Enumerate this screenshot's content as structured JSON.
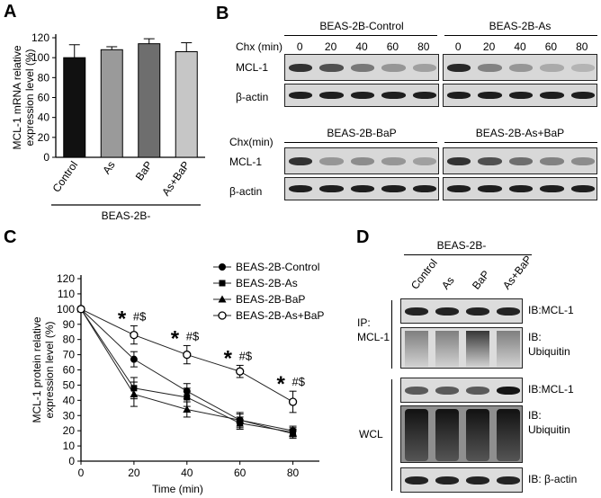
{
  "panels": {
    "a": "A",
    "b": "B",
    "c": "C",
    "d": "D"
  },
  "panel_a": {
    "chart_data": {
      "type": "bar",
      "categories": [
        "Control",
        "As",
        "BaP",
        "As+BaP"
      ],
      "values": [
        100,
        108,
        114,
        106
      ],
      "errors": [
        13,
        3,
        5,
        9
      ],
      "colors": [
        "#111111",
        "#9a9a9a",
        "#6e6e6e",
        "#c6c6c6"
      ],
      "ylabel": "MCL-1 mRNA relative expression level (%)",
      "ylabel_lines": [
        "MCL-1 mRNA relative",
        "expression level (%)"
      ],
      "ylim": [
        0,
        120
      ],
      "yticks": [
        "0",
        "20",
        "40",
        "60",
        "80",
        "100",
        "120"
      ],
      "group_label": "BEAS-2B-"
    }
  },
  "panel_b": {
    "chx_label": "Chx (min)",
    "chx_label_bottom": "Chx(min)",
    "timepoints": [
      "0",
      "20",
      "40",
      "60",
      "80"
    ],
    "row_labels": {
      "mcl1": "MCL-1",
      "actin": "β-actin"
    },
    "groups": [
      {
        "title": "BEAS-2B-Control",
        "mcl1_intensity": [
          0.85,
          0.7,
          0.5,
          0.35,
          0.3
        ]
      },
      {
        "title": "BEAS-2B-As",
        "mcl1_intensity": [
          0.9,
          0.45,
          0.35,
          0.25,
          0.2
        ]
      },
      {
        "title": "BEAS-2B-BaP",
        "mcl1_intensity": [
          0.85,
          0.35,
          0.4,
          0.35,
          0.3
        ]
      },
      {
        "title": "BEAS-2B-As+BaP",
        "mcl1_intensity": [
          0.85,
          0.7,
          0.55,
          0.45,
          0.4
        ]
      }
    ]
  },
  "panel_c": {
    "chart_data": {
      "type": "line",
      "x": [
        0,
        20,
        40,
        60,
        80
      ],
      "xticks": [
        "0",
        "20",
        "40",
        "60",
        "80"
      ],
      "yticks": [
        "0",
        "10",
        "20",
        "30",
        "40",
        "50",
        "60",
        "70",
        "80",
        "90",
        "100",
        "110",
        "120"
      ],
      "xlabel": "Time (min)",
      "ylabel": "MCL-1 protein relative expression level (%)",
      "ylabel_lines": [
        "MCL-1 protein relative",
        "expression level (%)"
      ],
      "xlim": [
        0,
        90
      ],
      "ylim": [
        0,
        120
      ],
      "series": [
        {
          "name": "BEAS-2B-Control",
          "marker": "circle-filled",
          "values": [
            100,
            67,
            46,
            27,
            20
          ],
          "errors": [
            0,
            5,
            5,
            4,
            3
          ]
        },
        {
          "name": "BEAS-2B-As",
          "marker": "square",
          "values": [
            100,
            48,
            42,
            25,
            19
          ],
          "errors": [
            0,
            7,
            6,
            4,
            3
          ]
        },
        {
          "name": "BEAS-2B-BaP",
          "marker": "triangle",
          "values": [
            100,
            44,
            34,
            27,
            18
          ],
          "errors": [
            0,
            8,
            5,
            5,
            3
          ]
        },
        {
          "name": "BEAS-2B-As+BaP",
          "marker": "circle-open",
          "values": [
            100,
            83,
            70,
            59,
            39
          ],
          "errors": [
            0,
            6,
            6,
            4,
            7
          ]
        }
      ],
      "annotations": [
        {
          "x": 20,
          "star": "*",
          "text": "#$"
        },
        {
          "x": 40,
          "star": "*",
          "text": "#$"
        },
        {
          "x": 60,
          "star": "*",
          "text": "#$"
        },
        {
          "x": 80,
          "star": "*",
          "text": "#$"
        }
      ],
      "legend_position": "top-right"
    }
  },
  "panel_d": {
    "group_label": "BEAS-2B-",
    "lanes": [
      "Control",
      "As",
      "BaP",
      "As+BaP"
    ],
    "ip_label": "IP:",
    "ip_target": "MCL-1",
    "wcl_label": "WCL",
    "blots": [
      {
        "label": "IB:MCL-1",
        "label2": "",
        "kind": "band"
      },
      {
        "label": "IB:",
        "label2": "Ubiquitin",
        "kind": "smear"
      },
      {
        "label": "IB:MCL-1",
        "label2": "",
        "kind": "band"
      },
      {
        "label": "IB:",
        "label2": "Ubiquitin",
        "kind": "smear-dark"
      },
      {
        "label": "IB: β-actin",
        "label2": "",
        "kind": "band"
      }
    ]
  }
}
